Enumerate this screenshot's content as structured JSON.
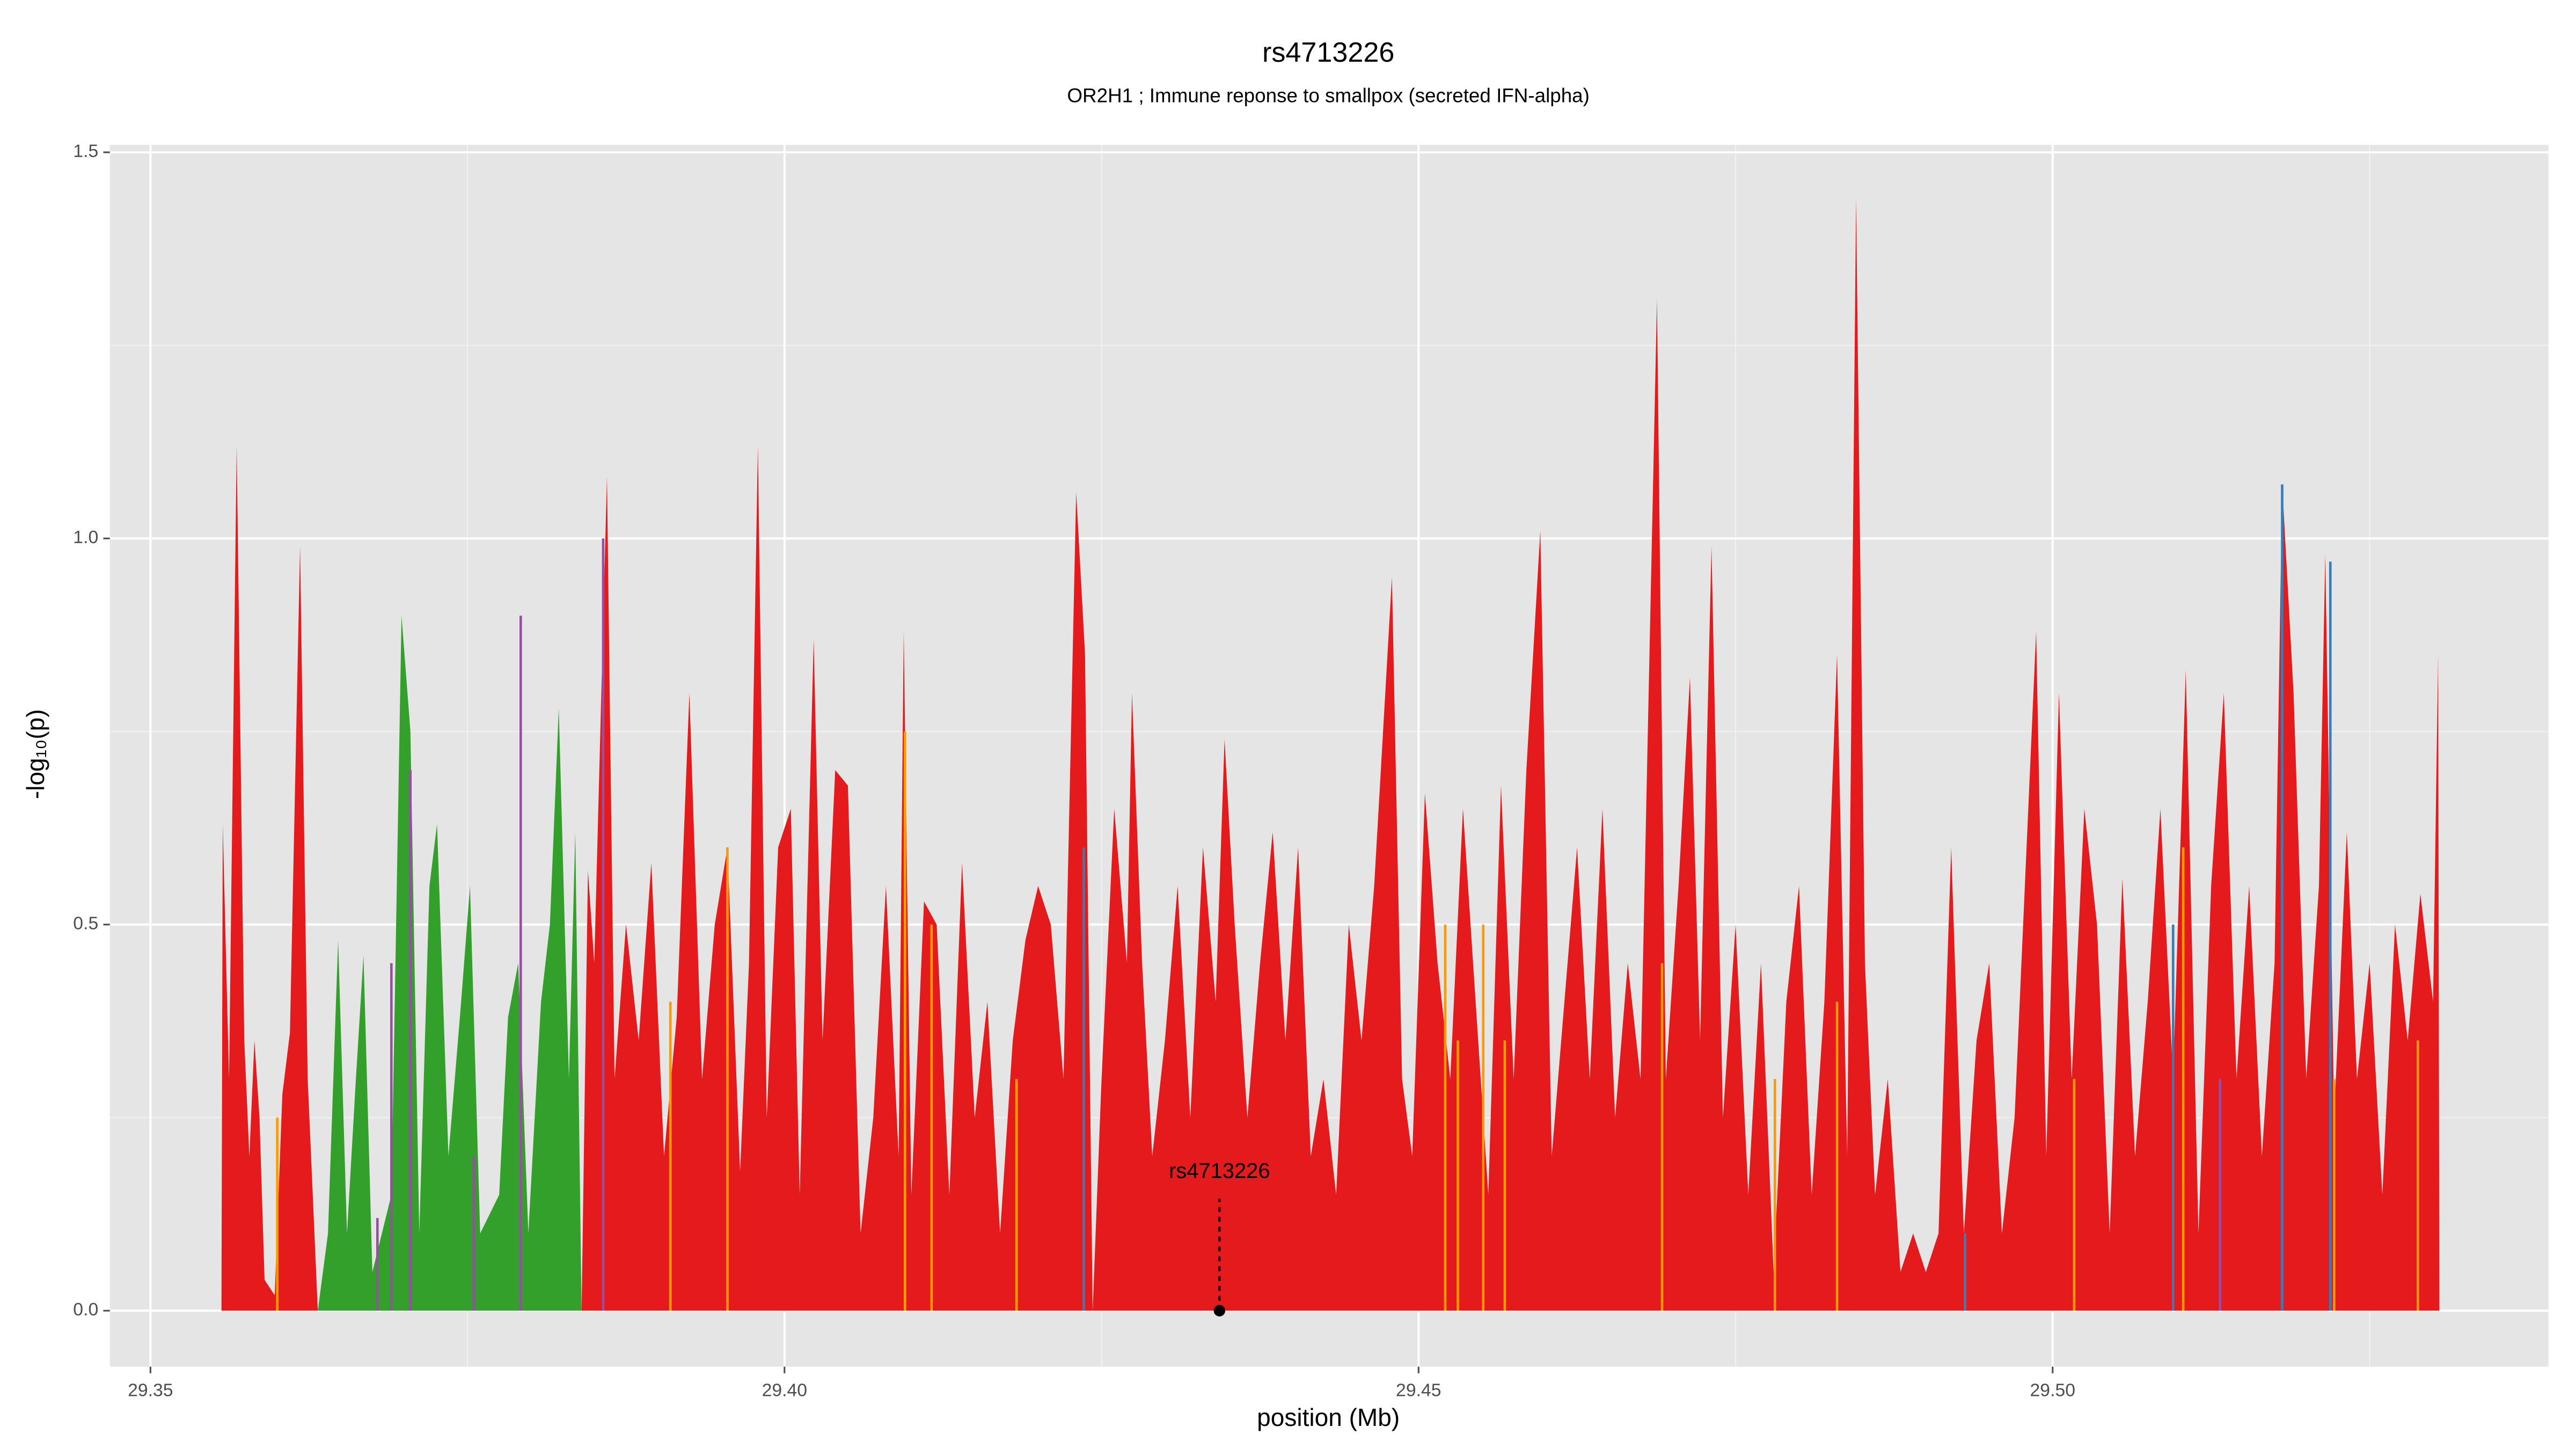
{
  "chart_data": {
    "type": "area",
    "title": "rs4713226",
    "subtitle": "OR2H1 ; Immune reponse to smallpox (secreted IFN-alpha)",
    "x_label": "position (Mb)",
    "y_label": "-log₁₀(p)",
    "xlim": [
      29.3468,
      29.5391
    ],
    "ylim": [
      -0.0725,
      1.5096
    ],
    "xticks": [
      29.35,
      {
        "value": 29.4,
        "label": "29.40"
      },
      29.45,
      {
        "value": 29.5,
        "label": "29.50"
      }
    ],
    "yticks": [
      {
        "value": 0,
        "label": "0.0"
      },
      0.5,
      {
        "value": 1,
        "label": "1.0"
      },
      1.5
    ],
    "x_minor_grid": [
      29.375,
      29.425,
      29.475,
      29.525
    ],
    "y_minor_grid": [
      0.25,
      0.75,
      1.25
    ],
    "grid": true,
    "series": [
      {
        "color": "#e41a1c",
        "x": [
          29.3556,
          29.3557,
          29.3562,
          29.3568,
          29.3574,
          29.3578,
          29.3582,
          29.3586,
          29.359,
          29.3598,
          29.3604,
          29.361,
          29.3618,
          29.3624,
          29.3632,
          29.384,
          29.3845,
          29.385,
          29.386,
          29.3866,
          29.3875,
          29.3885,
          29.3895,
          29.3905,
          29.3915,
          29.3925,
          29.3935,
          29.3945,
          29.3955,
          29.3965,
          29.3972,
          29.3979,
          29.3986,
          29.3995,
          29.4005,
          29.4012,
          29.4023,
          29.403,
          29.404,
          29.405,
          29.406,
          29.407,
          29.408,
          29.409,
          29.4094,
          29.41,
          29.411,
          29.412,
          29.413,
          29.414,
          29.415,
          29.416,
          29.417,
          29.418,
          29.419,
          29.42,
          29.421,
          29.422,
          29.423,
          29.4237,
          29.4243,
          29.425,
          29.426,
          29.427,
          29.4274,
          29.4282,
          29.429,
          29.43,
          29.431,
          29.432,
          29.433,
          29.434,
          29.4347,
          29.4355,
          29.4365,
          29.4375,
          29.4385,
          29.4395,
          29.4405,
          29.4415,
          29.4425,
          29.4435,
          29.4445,
          29.4455,
          29.4465,
          29.4479,
          29.4487,
          29.4495,
          29.4505,
          29.4515,
          29.4525,
          29.4535,
          29.4545,
          29.4555,
          29.4565,
          29.4575,
          29.4585,
          29.4596,
          29.4605,
          29.4615,
          29.4625,
          29.4635,
          29.4645,
          29.4655,
          29.4665,
          29.4675,
          29.4688,
          29.4695,
          29.4705,
          29.4714,
          29.4722,
          29.4731,
          29.474,
          29.475,
          29.476,
          29.477,
          29.478,
          29.479,
          29.48,
          29.481,
          29.482,
          29.483,
          29.4838,
          29.4845,
          29.4852,
          29.486,
          29.487,
          29.488,
          29.489,
          29.49,
          29.491,
          29.492,
          29.493,
          29.494,
          29.495,
          29.496,
          29.497,
          29.4987,
          29.4995,
          29.5005,
          29.5015,
          29.5025,
          29.5035,
          29.5045,
          29.5055,
          29.5065,
          29.5075,
          29.5085,
          29.5095,
          29.5105,
          29.5115,
          29.5125,
          29.5135,
          29.5145,
          29.5155,
          29.5165,
          29.5175,
          29.5181,
          29.519,
          29.52,
          29.521,
          29.5215,
          29.5222,
          29.5232,
          29.524,
          29.525,
          29.526,
          29.527,
          29.528,
          29.529,
          29.53,
          29.5304,
          29.5305
        ],
        "values": [
          0,
          0.63,
          0.3,
          1.12,
          0.35,
          0.2,
          0.35,
          0.25,
          0.04,
          0.02,
          0.28,
          0.36,
          0.99,
          0.3,
          0,
          0,
          0.57,
          0.45,
          1.08,
          0.3,
          0.5,
          0.35,
          0.58,
          0.2,
          0.38,
          0.8,
          0.3,
          0.5,
          0.6,
          0.18,
          0.45,
          1.12,
          0.25,
          0.6,
          0.65,
          0.15,
          0.87,
          0.35,
          0.7,
          0.68,
          0.1,
          0.25,
          0.55,
          0.2,
          0.88,
          0.15,
          0.53,
          0.5,
          0.15,
          0.58,
          0.25,
          0.4,
          0.1,
          0.35,
          0.48,
          0.55,
          0.5,
          0.3,
          1.06,
          0.85,
          0,
          0.3,
          0.65,
          0.45,
          0.8,
          0.45,
          0.2,
          0.35,
          0.55,
          0.25,
          0.6,
          0.4,
          0.74,
          0.5,
          0.25,
          0.45,
          0.62,
          0.35,
          0.6,
          0.2,
          0.3,
          0.15,
          0.5,
          0.35,
          0.55,
          0.95,
          0.3,
          0.2,
          0.67,
          0.45,
          0.3,
          0.65,
          0.4,
          0.15,
          0.68,
          0.3,
          0.7,
          1.01,
          0.2,
          0.4,
          0.6,
          0.3,
          0.65,
          0.25,
          0.45,
          0.3,
          1.31,
          0.3,
          0.55,
          0.82,
          0.35,
          0.99,
          0.25,
          0.5,
          0.15,
          0.45,
          0.05,
          0.4,
          0.55,
          0.15,
          0.4,
          0.85,
          0.2,
          1.44,
          0.45,
          0.15,
          0.3,
          0.05,
          0.1,
          0.05,
          0.1,
          0.6,
          0.1,
          0.35,
          0.45,
          0.1,
          0.25,
          0.88,
          0.2,
          0.8,
          0.3,
          0.65,
          0.5,
          0.1,
          0.56,
          0.2,
          0.4,
          0.65,
          0.3,
          0.83,
          0.1,
          0.55,
          0.8,
          0.3,
          0.55,
          0.2,
          0.45,
          1.07,
          0.8,
          0.3,
          0.55,
          0.98,
          0.25,
          0.62,
          0.3,
          0.45,
          0.15,
          0.5,
          0.35,
          0.54,
          0.4,
          0.85,
          0
        ]
      },
      {
        "color": "#33a02c",
        "x": [
          29.3632,
          29.364,
          29.3648,
          29.3655,
          29.3662,
          29.3668,
          29.3675,
          29.369,
          29.3698,
          29.3705,
          29.3712,
          29.372,
          29.3726,
          29.3735,
          29.3745,
          29.3752,
          29.376,
          29.3775,
          29.3782,
          29.379,
          29.3798,
          29.3808,
          29.3815,
          29.3822,
          29.383,
          29.3835,
          29.384
        ],
        "values": [
          0,
          0.1,
          0.48,
          0.1,
          0.3,
          0.46,
          0.05,
          0.15,
          0.9,
          0.75,
          0.1,
          0.55,
          0.63,
          0.2,
          0.4,
          0.55,
          0.1,
          0.15,
          0.38,
          0.45,
          0.1,
          0.4,
          0.5,
          0.78,
          0.3,
          0.62,
          0
        ]
      }
    ],
    "lines": [
      {
        "color": "#ff9900",
        "x": [
          29.36,
          29.391,
          29.3955,
          29.4095,
          29.4116,
          29.4183,
          29.4521,
          29.4531,
          29.4551,
          29.4568,
          29.4692,
          29.4781,
          29.483,
          29.5017,
          29.5103,
          29.5222,
          29.5288
        ],
        "values": [
          0.25,
          0.4,
          0.6,
          0.75,
          0.5,
          0.3,
          0.5,
          0.35,
          0.5,
          0.35,
          0.45,
          0.3,
          0.4,
          0.3,
          0.6,
          0.3,
          0.35
        ]
      },
      {
        "color": "#377eb8",
        "x": [
          29.4236,
          29.4931,
          29.5095,
          29.5181,
          29.5219
        ],
        "values": [
          0.6,
          0.1,
          0.5,
          1.07,
          0.97
        ]
      },
      {
        "color": "#984ea3",
        "x": [
          29.3679,
          29.369,
          29.3705,
          29.3755,
          29.3792,
          29.3857,
          29.5132
        ],
        "values": [
          0.12,
          0.45,
          0.7,
          0.2,
          0.9,
          1.0,
          0.3
        ]
      }
    ],
    "annotation": {
      "text": "rs4713226",
      "x": 29.4343,
      "y": 0
    }
  }
}
